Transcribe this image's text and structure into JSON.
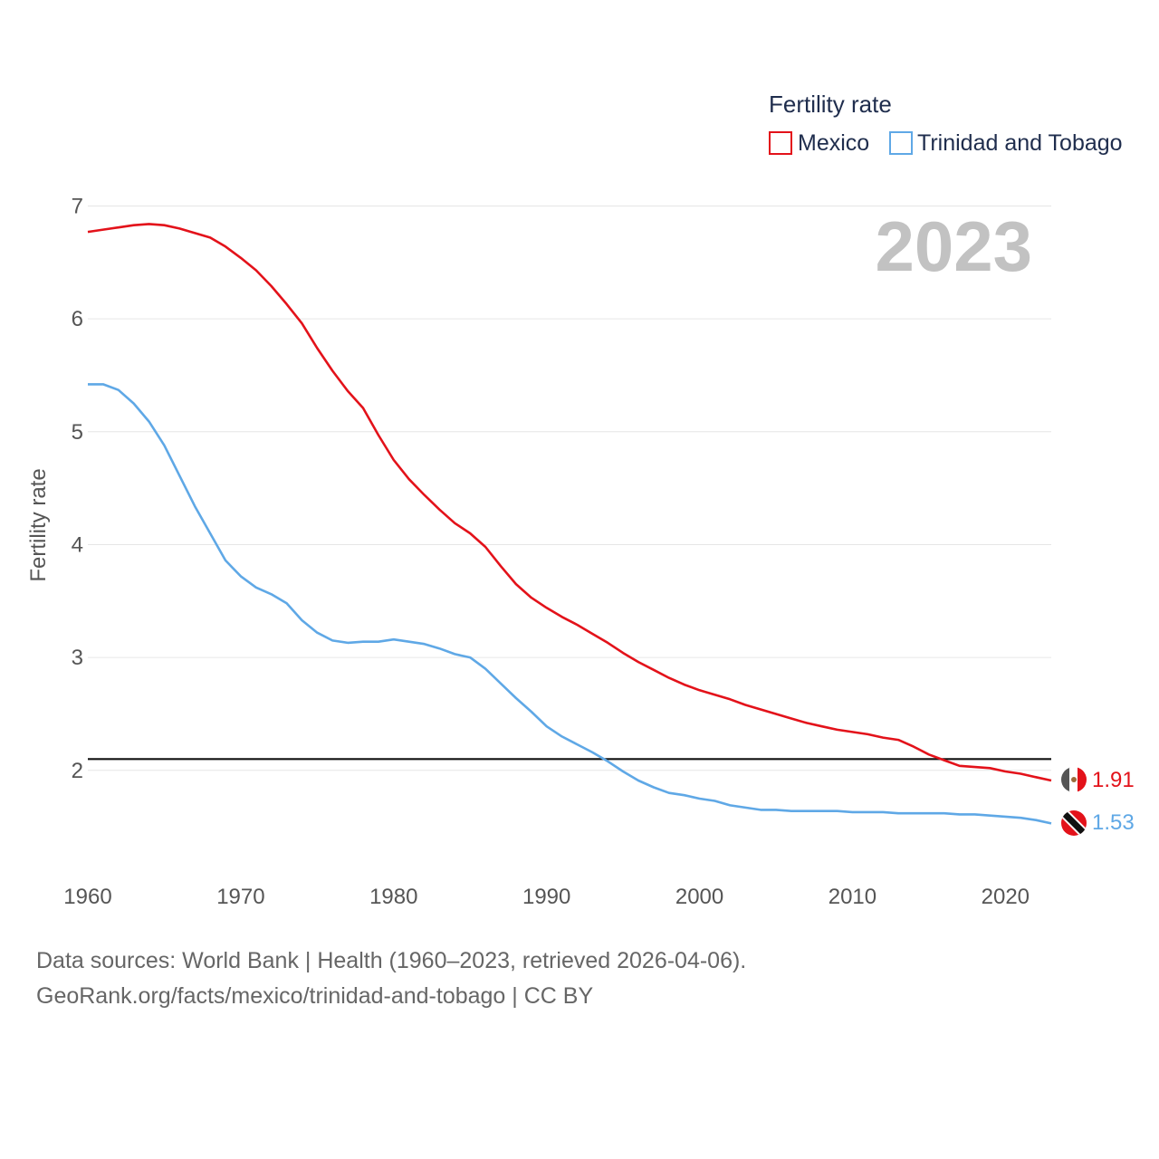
{
  "chart_data": {
    "type": "line",
    "title": "Fertility rate",
    "year_label": "2023",
    "xlabel": "",
    "ylabel": "Fertility rate",
    "xlim": [
      1960,
      2023
    ],
    "ylim": [
      1.1,
      7.1
    ],
    "x_ticks": [
      1960,
      1970,
      1980,
      1990,
      2000,
      2010,
      2020
    ],
    "y_ticks": [
      2,
      3,
      4,
      5,
      6,
      7
    ],
    "reference_line": 2.1,
    "x": [
      1960,
      1961,
      1962,
      1963,
      1964,
      1965,
      1966,
      1967,
      1968,
      1969,
      1970,
      1971,
      1972,
      1973,
      1974,
      1975,
      1976,
      1977,
      1978,
      1979,
      1980,
      1981,
      1982,
      1983,
      1984,
      1985,
      1986,
      1987,
      1988,
      1989,
      1990,
      1991,
      1992,
      1993,
      1994,
      1995,
      1996,
      1997,
      1998,
      1999,
      2000,
      2001,
      2002,
      2003,
      2004,
      2005,
      2006,
      2007,
      2008,
      2009,
      2010,
      2011,
      2012,
      2013,
      2014,
      2015,
      2016,
      2017,
      2018,
      2019,
      2020,
      2021,
      2022,
      2023
    ],
    "series": [
      {
        "name": "Mexico",
        "color": "#e3121a",
        "end_label": "1.91",
        "flag": "mexico-flag",
        "values": [
          6.77,
          6.79,
          6.81,
          6.83,
          6.84,
          6.83,
          6.8,
          6.76,
          6.72,
          6.64,
          6.54,
          6.43,
          6.29,
          6.13,
          5.96,
          5.74,
          5.54,
          5.36,
          5.21,
          4.97,
          4.75,
          4.58,
          4.44,
          4.31,
          4.19,
          4.1,
          3.98,
          3.81,
          3.65,
          3.53,
          3.44,
          3.36,
          3.29,
          3.21,
          3.13,
          3.04,
          2.96,
          2.89,
          2.82,
          2.76,
          2.71,
          2.67,
          2.63,
          2.58,
          2.54,
          2.5,
          2.46,
          2.42,
          2.39,
          2.36,
          2.34,
          2.32,
          2.29,
          2.27,
          2.21,
          2.14,
          2.09,
          2.04,
          2.03,
          2.02,
          1.99,
          1.97,
          1.94,
          1.91
        ]
      },
      {
        "name": "Trinidad and Tobago",
        "color": "#5fa8e6",
        "end_label": "1.53",
        "flag": "trinidad-and-tobago-flag",
        "values": [
          5.42,
          5.42,
          5.37,
          5.25,
          5.09,
          4.88,
          4.61,
          4.34,
          4.1,
          3.86,
          3.72,
          3.62,
          3.56,
          3.48,
          3.33,
          3.22,
          3.15,
          3.13,
          3.14,
          3.14,
          3.16,
          3.14,
          3.12,
          3.08,
          3.03,
          3.0,
          2.9,
          2.77,
          2.64,
          2.52,
          2.39,
          2.3,
          2.23,
          2.16,
          2.08,
          1.99,
          1.91,
          1.85,
          1.8,
          1.78,
          1.75,
          1.73,
          1.69,
          1.67,
          1.65,
          1.65,
          1.64,
          1.64,
          1.64,
          1.64,
          1.63,
          1.63,
          1.63,
          1.62,
          1.62,
          1.62,
          1.62,
          1.61,
          1.61,
          1.6,
          1.59,
          1.58,
          1.56,
          1.53
        ]
      }
    ]
  },
  "footer": {
    "source_line1": "Data sources: World Bank | Health (1960–2023, retrieved 2026-04-06).",
    "source_line2": "GeoRank.org/facts/mexico/trinidad-and-tobago | CC BY"
  }
}
